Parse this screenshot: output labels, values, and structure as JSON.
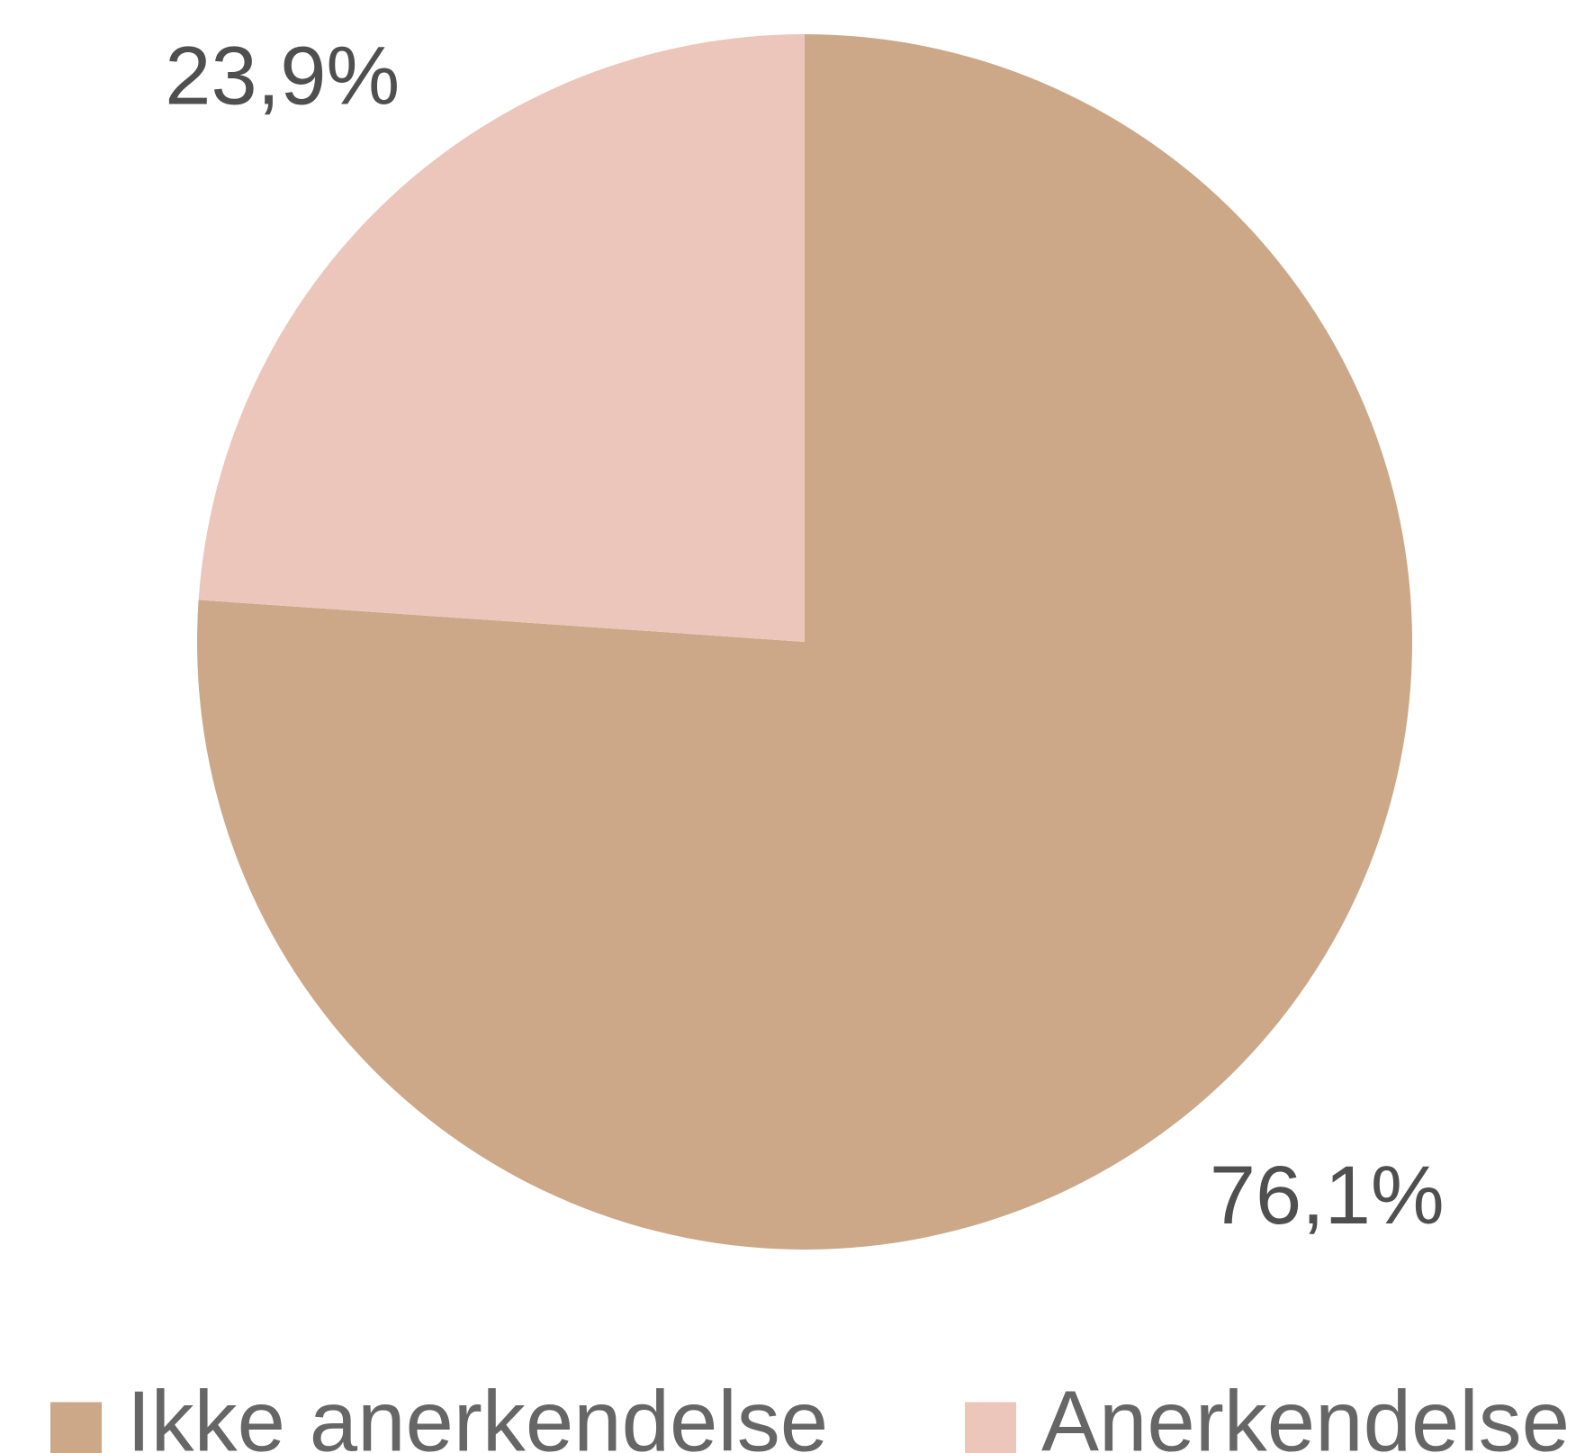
{
  "chart_data": {
    "type": "pie",
    "categories": [
      "Ikke anerkendelse",
      "Anerkendelse"
    ],
    "values": [
      76.1,
      23.9
    ],
    "value_labels": [
      "76,1%",
      "23,9%"
    ],
    "colors": [
      "#cca888",
      "#ecc6bb"
    ],
    "legend": "bottom"
  }
}
